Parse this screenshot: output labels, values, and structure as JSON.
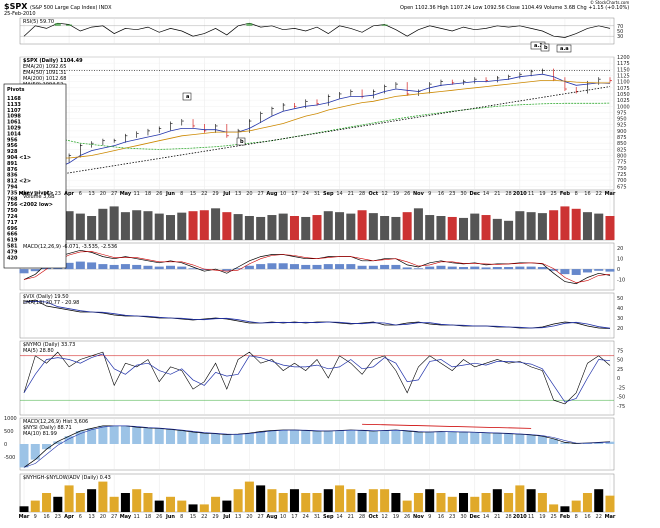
{
  "header": {
    "symbol": "$SPX",
    "description": "(S&P 500 Large Cap Index) INDX",
    "date": "25-Feb-2010",
    "quote": "Open 1102.36  High 1107.24  Low 1092.56  Close 1104.49  Volume 3.6B  Chg +1.15 (+0.10%)",
    "watermark": "© StockCharts.com"
  },
  "panels": {
    "rsi": {
      "legend": "RSI(5) 59.70"
    },
    "price": {
      "legend": "$SPX (Daily) 1104.49",
      "ema20": "EMA(20) 1092.65",
      "ema50": "EMA(50) 1091.31",
      "sma200": "MA(200) 1012.68",
      "sma50b": "MA(50) 1094.52",
      "volume": "Volume 3,6B"
    },
    "macd": {
      "legend": "MACD(12,26,9) -6.071, -3.535, -2.536"
    },
    "vix": {
      "legend": "$VIX (Daily) 19.50",
      "ema": "EMA(13) 20.77 - 20.98"
    },
    "nyhl": {
      "legend": "$NYMO (Daily) 33.73",
      "ma": "MA(5) 28.80"
    },
    "nysi": {
      "legend": "MACD(12,26,9) Hist 3,606",
      "sub1": "$NYSI (Daily) 88.71",
      "sub2": "MA(10) 81.99"
    },
    "tick": {
      "legend": "$NYHGH-$NYLOW/ADV (Daily) 0.43"
    }
  },
  "annotations": {
    "pivots_title": "Pivots",
    "pivots": [
      "1168",
      "1133",
      "1107",
      "1098",
      "1061",
      "1029",
      "1014",
      "956",
      "956",
      "928",
      "904 <1>",
      "891",
      "876",
      "836",
      "812 <2>",
      "794",
      "735 <key pivot>",
      "768",
      "756 <2002 low>",
      "750",
      "724",
      "717",
      "696",
      "666",
      "619",
      "581",
      "479",
      "420"
    ],
    "labels": [
      "a",
      "b",
      "a.1",
      "b",
      "a.a"
    ]
  },
  "chart_data": [
    {
      "type": "line",
      "title": "$SPX (Daily)",
      "x": [
        "Mar",
        "9",
        "16",
        "23",
        "Apr",
        "6",
        "13",
        "20",
        "27",
        "May",
        "11",
        "18",
        "26",
        "Jun",
        "8",
        "15",
        "22",
        "29",
        "Jul",
        "13",
        "20",
        "27",
        "Aug",
        "10",
        "17",
        "24",
        "31",
        "Sep",
        "14",
        "21",
        "28",
        "Oct",
        "12",
        "19",
        "26",
        "Nov",
        "9",
        "16",
        "23",
        "30",
        "Dec",
        "14",
        "21",
        "28",
        "2010",
        "11",
        "19",
        "25",
        "Feb",
        "8",
        "16",
        "22",
        "Mar"
      ],
      "series": [
        {
          "name": "$SPX",
          "values": [
            700,
            680,
            760,
            780,
            800,
            840,
            850,
            860,
            860,
            880,
            890,
            900,
            910,
            930,
            940,
            920,
            900,
            920,
            880,
            900,
            940,
            970,
            990,
            1005,
            1000,
            1020,
            1010,
            1040,
            1050,
            1060,
            1040,
            1060,
            1080,
            1090,
            1050,
            1060,
            1090,
            1100,
            1095,
            1100,
            1110,
            1105,
            1115,
            1120,
            1130,
            1140,
            1145,
            1110,
            1070,
            1060,
            1095,
            1110,
            1104
          ]
        },
        {
          "name": "EMA(20)",
          "values": [
            740,
            730,
            740,
            750,
            770,
            800,
            820,
            830,
            840,
            855,
            865,
            875,
            885,
            900,
            910,
            910,
            905,
            905,
            895,
            895,
            910,
            935,
            960,
            980,
            990,
            1000,
            1005,
            1015,
            1030,
            1040,
            1040,
            1045,
            1060,
            1070,
            1065,
            1060,
            1075,
            1085,
            1090,
            1095,
            1100,
            1100,
            1105,
            1110,
            1120,
            1125,
            1130,
            1120,
            1100,
            1085,
            1090,
            1095,
            1093
          ]
        },
        {
          "name": "MA(50)",
          "values": [
            830,
            810,
            800,
            790,
            790,
            795,
            800,
            810,
            820,
            830,
            840,
            850,
            860,
            870,
            880,
            885,
            890,
            895,
            895,
            895,
            900,
            910,
            920,
            930,
            945,
            960,
            970,
            985,
            995,
            1005,
            1015,
            1020,
            1030,
            1040,
            1045,
            1050,
            1055,
            1060,
            1065,
            1070,
            1075,
            1080,
            1085,
            1090,
            1095,
            1100,
            1105,
            1105,
            1102,
            1098,
            1096,
            1095,
            1095
          ]
        },
        {
          "name": "MA(200)",
          "values": [
            900,
            890,
            880,
            870,
            860,
            850,
            845,
            840,
            835,
            830,
            828,
            826,
            825,
            826,
            828,
            830,
            833,
            836,
            840,
            845,
            850,
            855,
            860,
            868,
            876,
            884,
            892,
            900,
            908,
            916,
            924,
            932,
            940,
            948,
            955,
            962,
            968,
            974,
            980,
            985,
            990,
            995,
            1000,
            1003,
            1006,
            1008,
            1010,
            1011,
            1012,
            1012,
            1012,
            1012,
            1013
          ]
        }
      ],
      "ylim": [
        660,
        1200
      ],
      "yticks": [
        1200,
        1175,
        1150,
        1125,
        1100,
        1075,
        1050,
        1025,
        1000,
        975,
        950,
        925,
        900,
        875,
        850,
        825,
        800,
        775,
        750,
        725,
        700,
        675
      ],
      "legend": "top-left",
      "grid": true
    },
    {
      "type": "bar",
      "title": "Volume",
      "values": [
        80,
        70,
        75,
        85,
        60,
        55,
        50,
        65,
        70,
        58,
        62,
        60,
        55,
        52,
        57,
        60,
        62,
        66,
        58,
        54,
        50,
        48,
        52,
        55,
        50,
        48,
        52,
        60,
        58,
        55,
        62,
        56,
        50,
        48,
        58,
        66,
        52,
        50,
        48,
        46,
        55,
        52,
        44,
        40,
        60,
        58,
        56,
        62,
        70,
        65,
        58,
        55,
        50
      ],
      "ylim": [
        0,
        100
      ]
    },
    {
      "type": "line",
      "title": "RSI(5)",
      "values": [
        30,
        70,
        60,
        80,
        75,
        50,
        65,
        70,
        40,
        60,
        55,
        65,
        45,
        60,
        50,
        30,
        40,
        60,
        35,
        70,
        80,
        65,
        70,
        55,
        60,
        50,
        65,
        40,
        70,
        60,
        45,
        70,
        75,
        55,
        30,
        55,
        70,
        60,
        50,
        65,
        55,
        60,
        70,
        65,
        70,
        60,
        50,
        30,
        25,
        40,
        60,
        70,
        60
      ],
      "ylim": [
        0,
        100
      ]
    },
    {
      "type": "line",
      "title": "MACD(12,26,9)",
      "values": [
        -10,
        -5,
        5,
        12,
        15,
        18,
        16,
        12,
        10,
        12,
        10,
        8,
        6,
        8,
        6,
        2,
        -2,
        0,
        -4,
        2,
        8,
        12,
        14,
        14,
        12,
        10,
        10,
        12,
        12,
        12,
        8,
        8,
        10,
        10,
        4,
        2,
        6,
        8,
        6,
        5,
        6,
        4,
        5,
        5,
        6,
        6,
        5,
        -4,
        -12,
        -14,
        -8,
        -4,
        -6
      ],
      "ylim": [
        -20,
        25
      ]
    },
    {
      "type": "line",
      "title": "$VIX (Daily)",
      "values": [
        46,
        48,
        42,
        40,
        38,
        36,
        36,
        35,
        33,
        32,
        32,
        31,
        30,
        30,
        29,
        28,
        29,
        30,
        29,
        27,
        25,
        25,
        26,
        25,
        26,
        25,
        26,
        26,
        25,
        24,
        25,
        26,
        23,
        23,
        25,
        26,
        24,
        23,
        23,
        22,
        22,
        22,
        21,
        21,
        20,
        20,
        21,
        24,
        26,
        25,
        22,
        20,
        19.5
      ],
      "ylim": [
        10,
        55
      ]
    },
    {
      "type": "line",
      "title": "$NYMO (Daily)",
      "values": [
        -40,
        60,
        40,
        70,
        30,
        50,
        60,
        70,
        -20,
        40,
        30,
        50,
        -10,
        30,
        20,
        -30,
        -10,
        40,
        -30,
        50,
        70,
        40,
        50,
        20,
        40,
        20,
        50,
        0,
        60,
        40,
        10,
        50,
        60,
        20,
        -40,
        30,
        60,
        40,
        20,
        50,
        30,
        40,
        50,
        40,
        45,
        30,
        20,
        -60,
        -70,
        -40,
        40,
        60,
        33.73
      ],
      "ylim": [
        -100,
        100
      ]
    },
    {
      "type": "line",
      "title": "$NYSI (Daily)",
      "values": [
        -900,
        -600,
        -200,
        100,
        300,
        500,
        600,
        700,
        700,
        700,
        650,
        620,
        600,
        560,
        520,
        460,
        420,
        400,
        360,
        380,
        420,
        480,
        520,
        540,
        540,
        520,
        500,
        500,
        520,
        540,
        520,
        500,
        520,
        540,
        500,
        460,
        460,
        480,
        470,
        460,
        450,
        430,
        420,
        400,
        380,
        350,
        300,
        200,
        60,
        20,
        40,
        60,
        88.71
      ],
      "ylim": [
        -1000,
        1000
      ]
    },
    {
      "type": "bar",
      "title": "$NYHGH-$NYLOW/ADV (Daily)",
      "values": [
        0.15,
        0.3,
        0.5,
        0.4,
        0.7,
        0.5,
        0.6,
        0.8,
        0.4,
        0.5,
        0.6,
        0.5,
        0.3,
        0.4,
        0.3,
        0.2,
        0.2,
        0.4,
        0.3,
        0.6,
        0.8,
        0.7,
        0.6,
        0.5,
        0.6,
        0.5,
        0.5,
        0.6,
        0.7,
        0.6,
        0.5,
        0.6,
        0.6,
        0.5,
        0.3,
        0.5,
        0.6,
        0.5,
        0.4,
        0.5,
        0.4,
        0.5,
        0.6,
        0.5,
        0.7,
        0.6,
        0.5,
        0.2,
        0.15,
        0.3,
        0.5,
        0.6,
        0.43
      ],
      "ylim": [
        0,
        1
      ]
    }
  ]
}
